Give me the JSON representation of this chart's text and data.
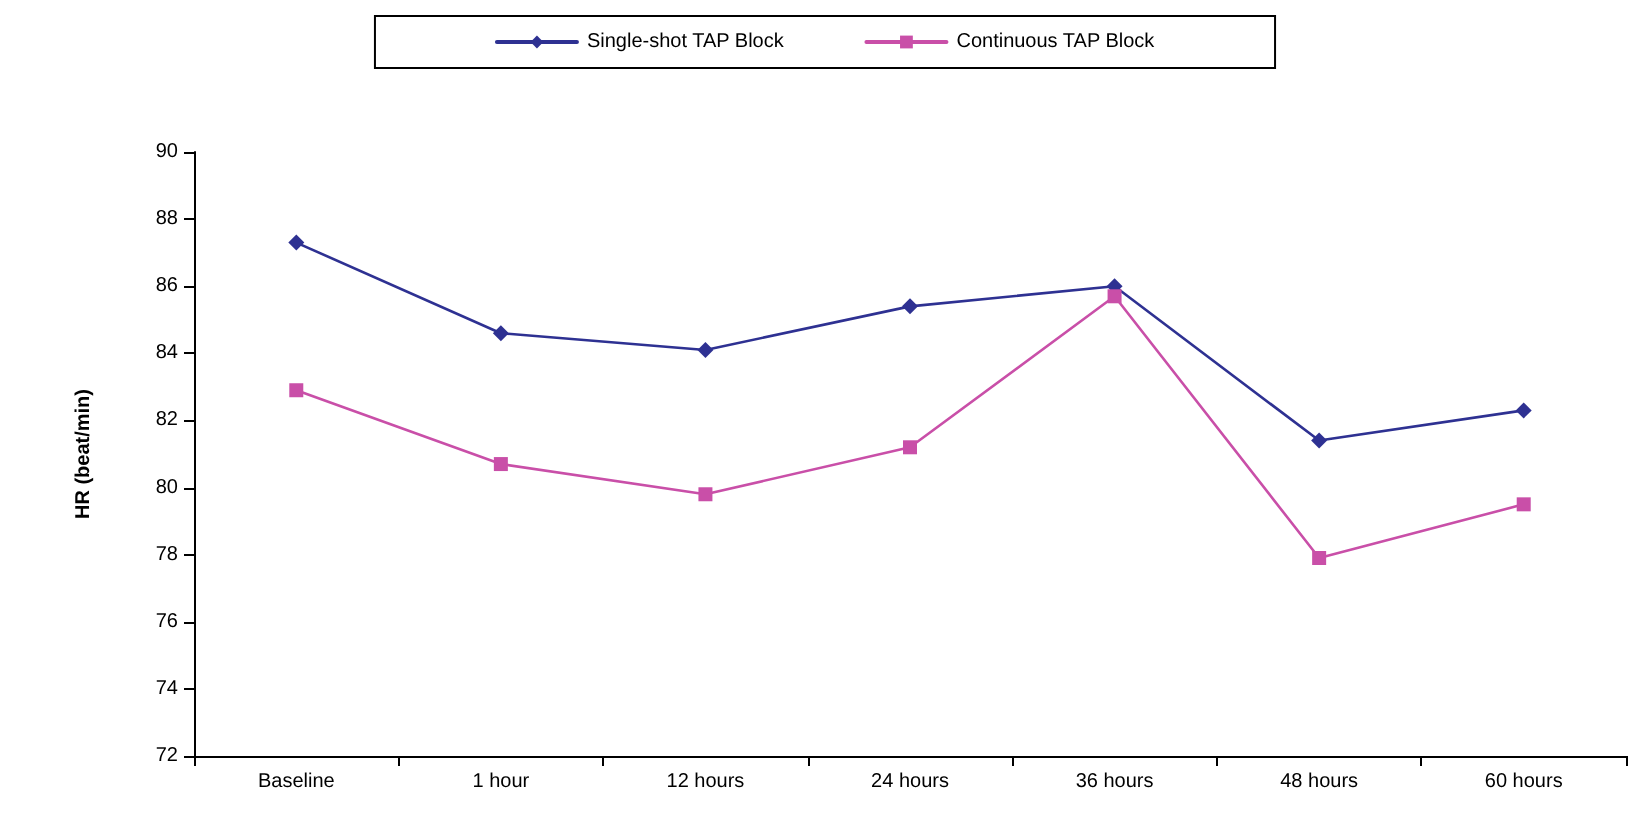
{
  "chart_data": {
    "type": "line",
    "ylabel": "HR (beat/min)",
    "categories": [
      "Baseline",
      "1 hour",
      "12 hours",
      "24 hours",
      "36 hours",
      "48 hours",
      "60 hours"
    ],
    "series": [
      {
        "name": "Single-shot TAP Block",
        "color": "#2e3192",
        "marker": "diamond",
        "values": [
          87.3,
          84.6,
          84.1,
          85.4,
          86.0,
          81.4,
          82.3
        ]
      },
      {
        "name": "Continuous TAP Block",
        "color": "#c94fa8",
        "marker": "square",
        "values": [
          82.9,
          80.7,
          79.8,
          81.2,
          85.7,
          77.9,
          79.5
        ]
      }
    ],
    "ylim": [
      72,
      90
    ],
    "yticks": [
      72,
      74,
      76,
      78,
      80,
      82,
      84,
      86,
      88,
      90
    ],
    "grid": false,
    "legend": "top",
    "line_style": "solid"
  }
}
